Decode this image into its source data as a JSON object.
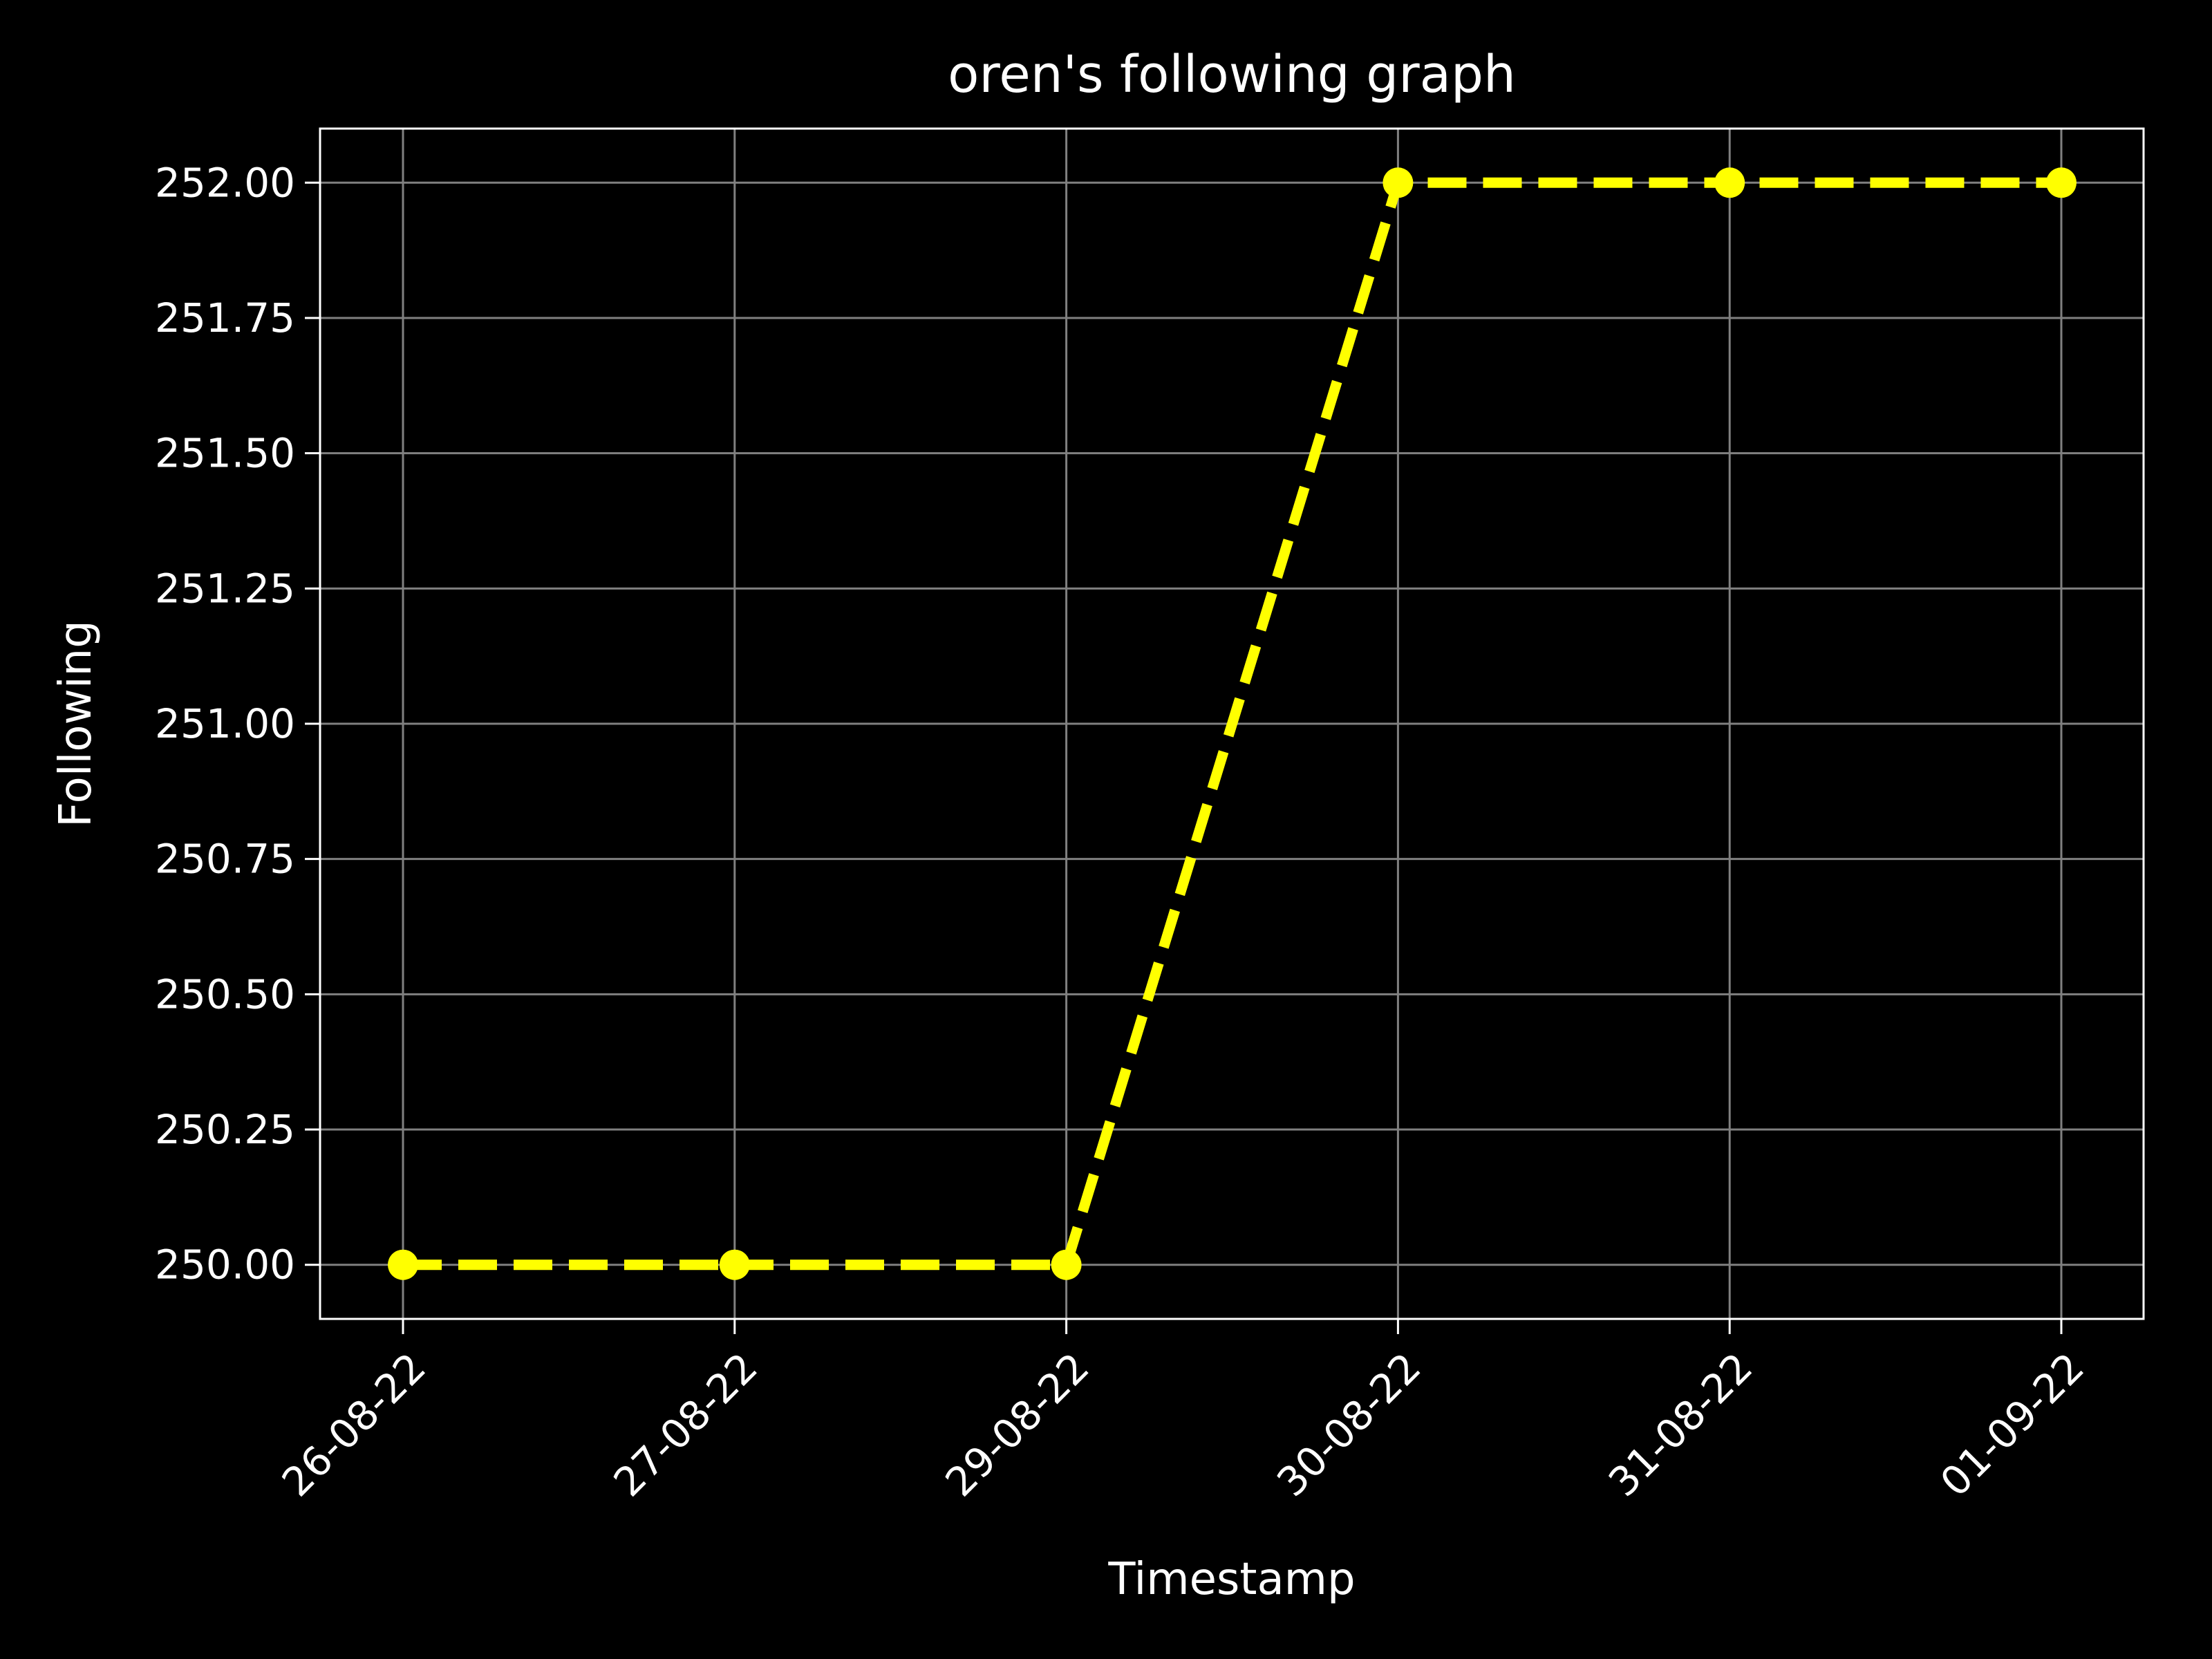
{
  "chart_data": {
    "type": "line",
    "title": "oren's following graph",
    "xlabel": "Timestamp",
    "ylabel": "Following",
    "categories": [
      "26-08-22",
      "27-08-22",
      "29-08-22",
      "30-08-22",
      "31-08-22",
      "01-09-22"
    ],
    "series": [
      {
        "values": [
          250,
          250,
          250,
          252,
          252,
          252
        ],
        "color": "#ffff00",
        "line_style": "dashed",
        "marker": "circle"
      }
    ],
    "ylim": [
      249.9,
      252.1
    ],
    "yticks": [
      250.0,
      250.25,
      250.5,
      250.75,
      251.0,
      251.25,
      251.5,
      251.75,
      252.0
    ],
    "ytick_labels": [
      "250.00",
      "250.25",
      "250.50",
      "250.75",
      "251.00",
      "251.25",
      "251.50",
      "251.75",
      "252.00"
    ],
    "xtick_rotation": 45,
    "grid": true,
    "background": "#000000",
    "grid_color": "#808080",
    "text_color": "#ffffff"
  }
}
